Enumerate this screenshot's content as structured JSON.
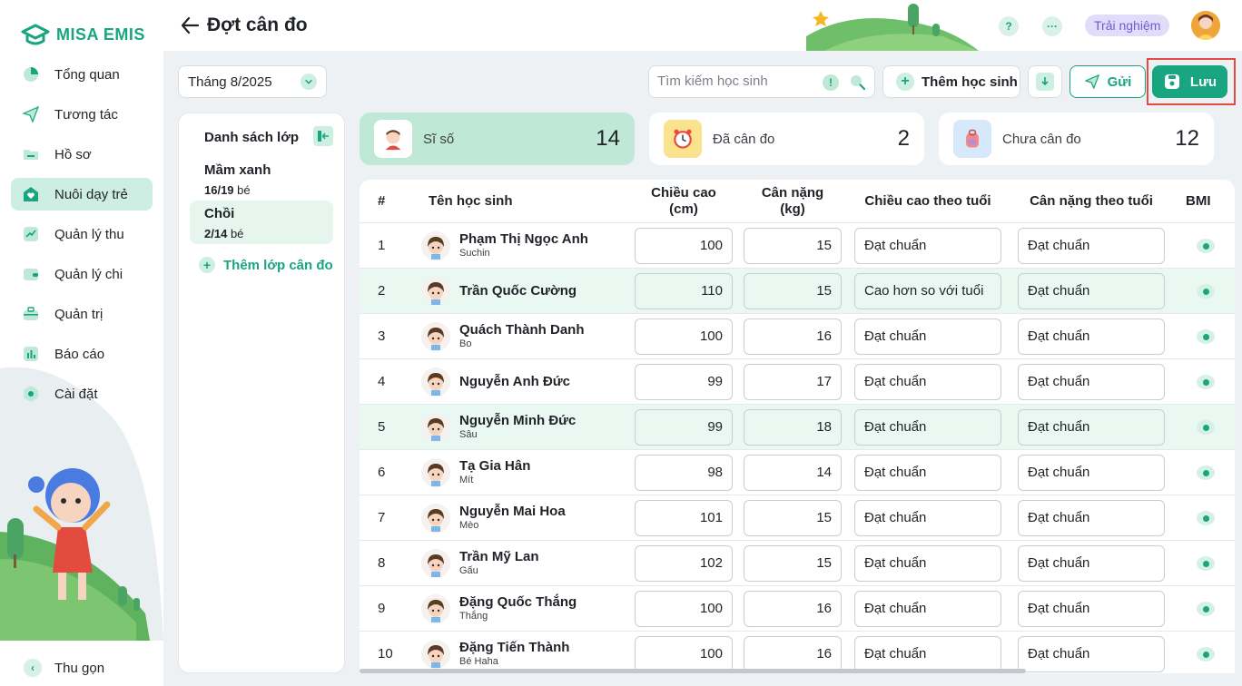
{
  "brand": {
    "name": "MISA EMIS",
    "color": "#18a57f"
  },
  "sidebar": {
    "items": [
      {
        "label": "Tổng quan",
        "icon": "pie-chart-icon"
      },
      {
        "label": "Tương tác",
        "icon": "paper-plane-icon"
      },
      {
        "label": "Hồ sơ",
        "icon": "folder-icon"
      },
      {
        "label": "Nuôi dạy trẻ",
        "icon": "heart-home-icon",
        "active": true
      },
      {
        "label": "Quản lý thu",
        "icon": "trend-icon"
      },
      {
        "label": "Quản lý chi",
        "icon": "wallet-icon"
      },
      {
        "label": "Quản trị",
        "icon": "briefcase-icon"
      },
      {
        "label": "Báo cáo",
        "icon": "bar-chart-icon"
      },
      {
        "label": "Cài đặt",
        "icon": "gear-icon"
      }
    ],
    "collapse_label": "Thu gọn"
  },
  "header": {
    "title": "Đợt cân đo",
    "help": "?",
    "more": "···",
    "trial_label": "Trải nghiệm"
  },
  "toolbar": {
    "month": "Tháng 8/2025",
    "search_placeholder": "Tìm kiếm học sinh",
    "info": "!",
    "add_student": "Thêm học sinh",
    "send": "Gửi",
    "save": "Lưu"
  },
  "classes": {
    "title": "Danh sách lớp",
    "items": [
      {
        "name": "Mầm xanh",
        "count": "16/19",
        "unit": "bé"
      },
      {
        "name": "Chồi",
        "count": "2/14",
        "unit": "bé",
        "active": true
      }
    ],
    "add_label": "Thêm lớp cân đo"
  },
  "stats": [
    {
      "label": "Sĩ số",
      "value": "14",
      "icon": "student-icon"
    },
    {
      "label": "Đã cân đo",
      "value": "2",
      "icon": "alarm-clock-icon"
    },
    {
      "label": "Chưa cân đo",
      "value": "12",
      "icon": "backpack-icon"
    }
  ],
  "table": {
    "headers": {
      "index": "#",
      "name": "Tên học sinh",
      "height_1": "Chiều cao",
      "height_2": "(cm)",
      "weight_1": "Cân nặng",
      "weight_2": "(kg)",
      "height_std": "Chiều cao theo tuổi",
      "weight_std": "Cân nặng theo tuổi",
      "bmi": "BMI"
    },
    "rows": [
      {
        "idx": "1",
        "name": "Phạm Thị Ngọc Anh",
        "nick": "Suchin",
        "height": "100",
        "weight": "15",
        "hs": "Đạt chuẩn",
        "ws": "Đạt chuẩn"
      },
      {
        "idx": "2",
        "name": "Trần Quốc Cường",
        "nick": "",
        "height": "110",
        "weight": "15",
        "hs": "Cao hơn so với tuổi",
        "ws": "Đạt chuẩn"
      },
      {
        "idx": "3",
        "name": "Quách Thành Danh",
        "nick": "Bo",
        "height": "100",
        "weight": "16",
        "hs": "Đạt chuẩn",
        "ws": "Đạt chuẩn"
      },
      {
        "idx": "4",
        "name": "Nguyễn Anh Đức",
        "nick": "",
        "height": "99",
        "weight": "17",
        "hs": "Đạt chuẩn",
        "ws": "Đạt chuẩn"
      },
      {
        "idx": "5",
        "name": "Nguyễn Minh Đức",
        "nick": "Sâu",
        "height": "99",
        "weight": "18",
        "hs": "Đạt chuẩn",
        "ws": "Đạt chuẩn"
      },
      {
        "idx": "6",
        "name": "Tạ Gia Hân",
        "nick": "Mít",
        "height": "98",
        "weight": "14",
        "hs": "Đạt chuẩn",
        "ws": "Đạt chuẩn"
      },
      {
        "idx": "7",
        "name": "Nguyễn Mai Hoa",
        "nick": "Mèo",
        "height": "101",
        "weight": "15",
        "hs": "Đạt chuẩn",
        "ws": "Đạt chuẩn"
      },
      {
        "idx": "8",
        "name": "Trần Mỹ Lan",
        "nick": "Gấu",
        "height": "102",
        "weight": "15",
        "hs": "Đạt chuẩn",
        "ws": "Đạt chuẩn"
      },
      {
        "idx": "9",
        "name": "Đặng Quốc Thắng",
        "nick": "Thắng",
        "height": "100",
        "weight": "16",
        "hs": "Đạt chuẩn",
        "ws": "Đạt chuẩn"
      },
      {
        "idx": "10",
        "name": "Đặng Tiến Thành",
        "nick": "Bé Haha",
        "height": "100",
        "weight": "16",
        "hs": "Đạt chuẩn",
        "ws": "Đạt chuẩn"
      }
    ]
  }
}
